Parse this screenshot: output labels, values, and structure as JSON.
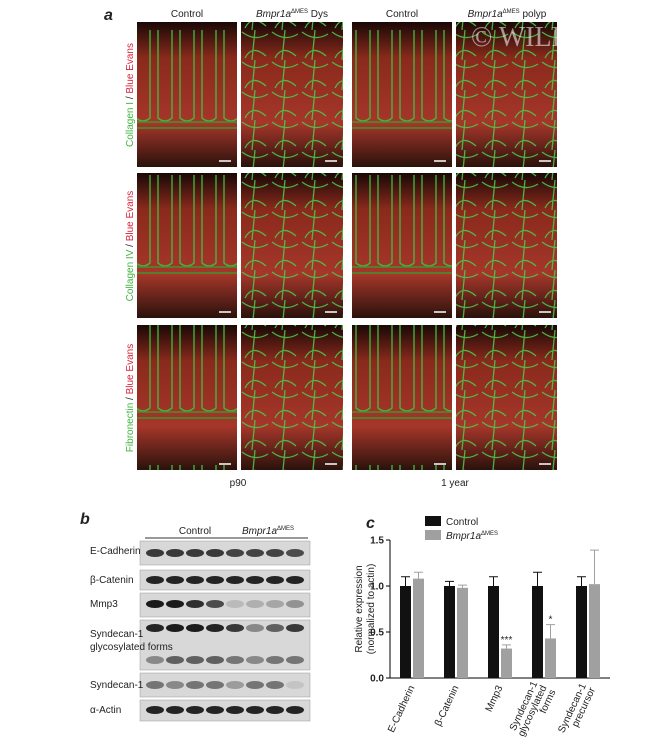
{
  "panel_a": {
    "label": "a",
    "watermark": "© WILEY",
    "columns": [
      {
        "text": "Control"
      },
      {
        "gene": "Bmpr1a",
        "sup": "ΔMES",
        "suffix": " Dys"
      },
      {
        "text": "Control"
      },
      {
        "gene": "Bmpr1a",
        "sup": "ΔMES",
        "suffix": " polyp"
      }
    ],
    "rows": [
      [
        "Collagen I",
        " / ",
        "Blue Evans"
      ],
      [
        "Collagen IV",
        " / ",
        "Blue Evans"
      ],
      [
        "Fibronectin",
        " / ",
        "Blue Evans"
      ]
    ],
    "groups": [
      "p90",
      "1 year"
    ]
  },
  "panel_b": {
    "label": "b",
    "groups": [
      {
        "text": "Control"
      },
      {
        "gene": "Bmpr1a",
        "sup": "ΔMES"
      }
    ],
    "rows": [
      "E-Cadherin",
      "β-Catenin",
      "Mmp3",
      [
        "Syndecan-1",
        "glycosylated forms"
      ],
      "Syndecan-1",
      "α-Actin"
    ]
  },
  "chart_data": {
    "type": "bar",
    "panel_label": "c",
    "y_label": [
      "Relative expression",
      "(normalized to actin)"
    ],
    "categories": [
      [
        "E-Cadherin"
      ],
      [
        "β-Catenin"
      ],
      [
        "Mmp3"
      ],
      [
        "Syndecan-1",
        "glycosylated",
        "forms"
      ],
      [
        "Syndecan-1",
        "precursor"
      ]
    ],
    "series": [
      {
        "name": "Control",
        "color": "#111111",
        "values": [
          1.0,
          1.0,
          1.0,
          1.0,
          1.0
        ],
        "errors": [
          0.1,
          0.05,
          0.1,
          0.15,
          0.1
        ]
      },
      {
        "name": "Bmpr1a",
        "name_superscript": "ΔMES",
        "color": "#a0a0a0",
        "values": [
          1.08,
          0.98,
          0.32,
          0.43,
          1.02
        ],
        "errors": [
          0.07,
          0.03,
          0.04,
          0.15,
          0.37
        ]
      }
    ],
    "significance": [
      null,
      null,
      "***",
      "*",
      null
    ],
    "ylim": [
      0,
      1.5
    ],
    "yticks": [
      {
        "value": 0,
        "label": "0.0"
      },
      {
        "value": 0.5,
        "label": "0.5"
      },
      {
        "value": 1,
        "label": "1.0"
      },
      {
        "value": 1.5,
        "label": "1.5"
      }
    ]
  }
}
